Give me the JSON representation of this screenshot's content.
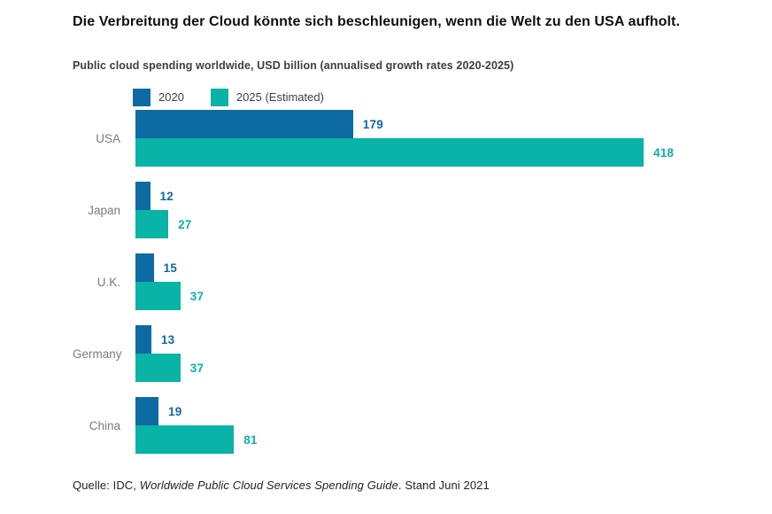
{
  "title": "Die Verbreitung der Cloud könnte sich beschleunigen, wenn die Welt zu den USA aufholt.",
  "subtitle": "Public cloud spending worldwide, USD billion (annualised growth rates 2020-2025)",
  "colors": {
    "series_2020": "#0e6aa2",
    "series_2025": "#09b3a5",
    "label_gray": "#7b7b7b"
  },
  "legend": [
    {
      "label": "2020",
      "color": "#0e6aa2"
    },
    {
      "label": "2025 (Estimated)",
      "color": "#09b3a5"
    }
  ],
  "chart_data": {
    "type": "bar",
    "orientation": "horizontal",
    "title": "Public cloud spending worldwide, USD billion (annualised growth rates 2020-2025)",
    "categories": [
      "USA",
      "Japan",
      "U.K.",
      "Germany",
      "China"
    ],
    "series": [
      {
        "name": "2020",
        "color": "#0e6aa2",
        "values": [
          179,
          12,
          15,
          13,
          19
        ]
      },
      {
        "name": "2025 (Estimated)",
        "color": "#09b3a5",
        "values": [
          418,
          27,
          37,
          37,
          81
        ]
      }
    ],
    "xlim": [
      0,
      418
    ],
    "unit": "USD billion",
    "grid": false,
    "legend_position": "top",
    "value_labels": "end-of-bar"
  },
  "source": {
    "prefix": "Quelle: IDC, ",
    "italic": "Worldwide Public Cloud Services Spending Guide",
    "suffix": ". Stand Juni 2021"
  }
}
